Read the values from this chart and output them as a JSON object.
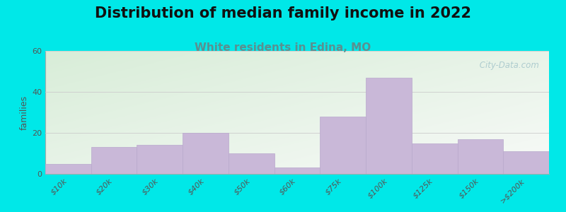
{
  "title": "Distribution of median family income in 2022",
  "subtitle": "White residents in Edina, MO",
  "ylabel": "families",
  "categories": [
    "$10k",
    "$20k",
    "$30k",
    "$40k",
    "$50k",
    "$60k",
    "$75k",
    "$100k",
    "$125k",
    "$150k",
    ">$200k"
  ],
  "values": [
    5,
    13,
    14,
    20,
    10,
    3,
    28,
    47,
    15,
    17,
    11
  ],
  "ylim": [
    0,
    60
  ],
  "yticks": [
    0,
    20,
    40,
    60
  ],
  "bar_color": "#c9b8d8",
  "bar_edgecolor": "#b8a8cc",
  "background_outer": "#00e8e8",
  "background_plot_top_left": "#d8edd8",
  "background_plot_bottom_right": "#f8faf8",
  "title_fontsize": 15,
  "subtitle_fontsize": 11,
  "subtitle_color": "#5a9090",
  "ylabel_fontsize": 9,
  "tick_fontsize": 8,
  "watermark_text": " City-Data.com",
  "watermark_color": "#a8c8cc"
}
